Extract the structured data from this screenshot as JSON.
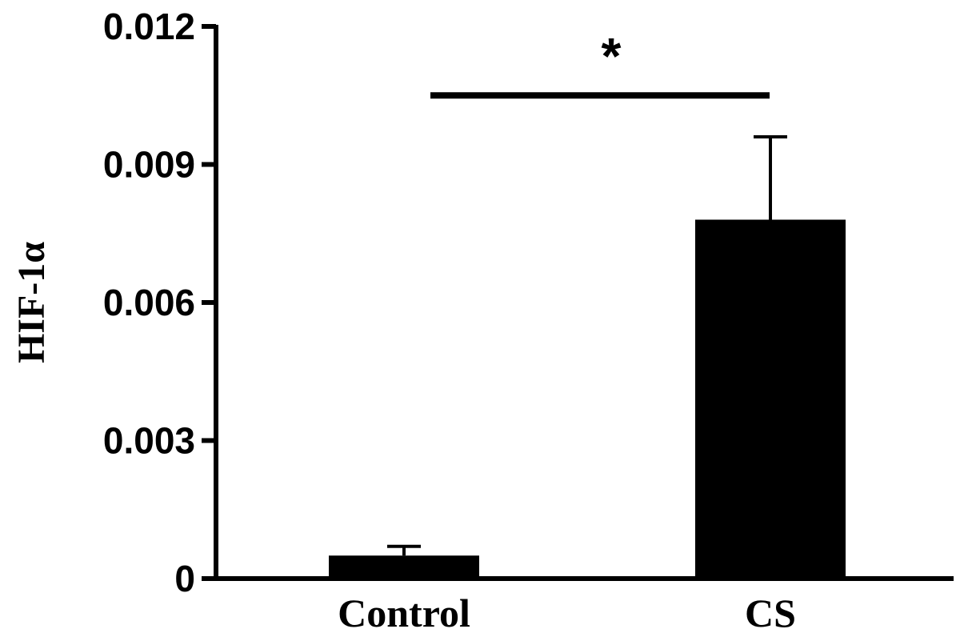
{
  "chart_data": {
    "type": "bar",
    "categories": [
      "Control",
      "CS"
    ],
    "values": [
      0.0005,
      0.0078
    ],
    "error": [
      0.0002,
      0.0018
    ],
    "ylabel": "HIF-1α",
    "xlabel": "",
    "ylim": [
      0,
      0.012
    ],
    "yticks": [
      0,
      0.003,
      0.006,
      0.009,
      0.012
    ],
    "ytick_labels": [
      "0",
      "0.003",
      "0.006",
      "0.009",
      "0.012"
    ],
    "significance": {
      "label": "*",
      "between": [
        "Control",
        "CS"
      ],
      "y": 0.0105
    },
    "grid": false,
    "bar_color": "#000000"
  }
}
